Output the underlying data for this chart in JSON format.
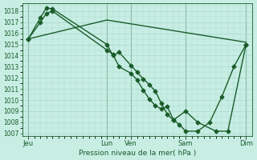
{
  "background_color": "#c8eee4",
  "grid_color": "#a8d8cc",
  "line_color": "#1a5c2a",
  "ylim": [
    1007,
    1018.5
  ],
  "yticks": [
    1007,
    1008,
    1009,
    1010,
    1011,
    1012,
    1013,
    1014,
    1015,
    1016,
    1017,
    1018
  ],
  "xlabel": "Pression niveau de la mer( hPa )",
  "xtick_labels": [
    "Jeu",
    "Lun",
    "Ven",
    "Sam",
    "Dim"
  ],
  "xtick_positions": [
    0,
    13,
    17,
    26,
    36
  ],
  "xlim": [
    -1,
    37
  ],
  "line1_x": [
    0,
    2,
    3,
    4,
    13,
    14,
    15,
    17,
    18,
    19,
    20,
    21,
    22,
    23,
    24,
    26,
    28,
    31,
    33,
    36
  ],
  "line1_y": [
    1015.5,
    1017.4,
    1018.3,
    1018.2,
    1015.0,
    1014.0,
    1014.3,
    1013.1,
    1012.5,
    1011.9,
    1011.4,
    1010.8,
    1009.7,
    1008.7,
    1008.2,
    1009.0,
    1008.0,
    1007.2,
    1007.2,
    1015.0
  ],
  "line2_x": [
    0,
    2,
    3,
    4,
    13,
    14,
    15,
    17,
    18,
    19,
    20,
    21,
    22,
    23,
    24,
    25,
    26,
    28,
    30,
    32,
    34,
    36
  ],
  "line2_y": [
    1015.5,
    1017.0,
    1017.8,
    1018.0,
    1014.5,
    1014.1,
    1013.0,
    1012.4,
    1011.8,
    1010.9,
    1010.1,
    1009.5,
    1009.2,
    1009.4,
    1008.2,
    1007.8,
    1007.2,
    1007.2,
    1008.0,
    1010.3,
    1013.0,
    1015.0
  ],
  "line3_x": [
    0,
    13,
    36
  ],
  "line3_y": [
    1015.5,
    1017.2,
    1015.2
  ],
  "marker": "D",
  "markersize": 2.5,
  "linewidth": 1.0
}
